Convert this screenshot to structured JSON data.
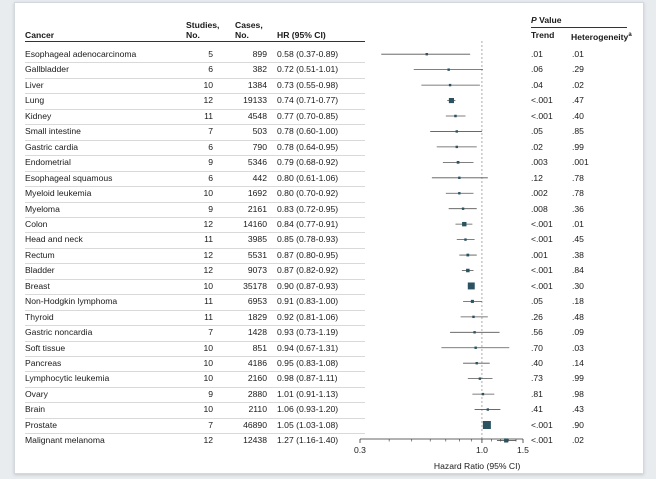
{
  "headers": {
    "cancer": "Cancer",
    "studies_line1": "Studies,",
    "studies_line2": "No.",
    "cases_line1": "Cases,",
    "cases_line2": "No.",
    "hr": "HR (95% CI)",
    "pvalue_italic": "P",
    "pvalue_rest": " Value",
    "trend": "Trend",
    "heterogeneity": "Heterogeneity",
    "heterogeneity_sup": "a"
  },
  "chart_data": {
    "type": "forest",
    "xlabel": "Hazard Ratio (95% CI)",
    "xscale": "log",
    "xlim": [
      0.3,
      1.5
    ],
    "xticks": [
      "0.3",
      "1.0",
      "1.5"
    ],
    "xtick_values": [
      0.3,
      1.0,
      1.5
    ],
    "reference_line": 1.0,
    "rows": [
      {
        "cancer": "Esophageal adenocarcinoma",
        "studies": "5",
        "cases": "899",
        "hr_text": "0.58 (0.37-0.89)",
        "hr": 0.58,
        "lo": 0.37,
        "hi": 0.89,
        "trend": ".01",
        "het": ".01"
      },
      {
        "cancer": "Gallbladder",
        "studies": "6",
        "cases": "382",
        "hr_text": "0.72 (0.51-1.01)",
        "hr": 0.72,
        "lo": 0.51,
        "hi": 1.01,
        "trend": ".06",
        "het": ".29"
      },
      {
        "cancer": "Liver",
        "studies": "10",
        "cases": "1384",
        "hr_text": "0.73 (0.55-0.98)",
        "hr": 0.73,
        "lo": 0.55,
        "hi": 0.98,
        "trend": ".04",
        "het": ".02"
      },
      {
        "cancer": "Lung",
        "studies": "12",
        "cases": "19133",
        "hr_text": "0.74 (0.71-0.77)",
        "hr": 0.74,
        "lo": 0.71,
        "hi": 0.77,
        "trend": "<.001",
        "het": ".47"
      },
      {
        "cancer": "Kidney",
        "studies": "11",
        "cases": "4548",
        "hr_text": "0.77 (0.70-0.85)",
        "hr": 0.77,
        "lo": 0.7,
        "hi": 0.85,
        "trend": "<.001",
        "het": ".40"
      },
      {
        "cancer": "Small intestine",
        "studies": "7",
        "cases": "503",
        "hr_text": "0.78 (0.60-1.00)",
        "hr": 0.78,
        "lo": 0.6,
        "hi": 1.0,
        "trend": ".05",
        "het": ".85"
      },
      {
        "cancer": "Gastric cardia",
        "studies": "6",
        "cases": "790",
        "hr_text": "0.78 (0.64-0.95)",
        "hr": 0.78,
        "lo": 0.64,
        "hi": 0.95,
        "trend": ".02",
        "het": ".99"
      },
      {
        "cancer": "Endometrial",
        "studies": "9",
        "cases": "5346",
        "hr_text": "0.79 (0.68-0.92)",
        "hr": 0.79,
        "lo": 0.68,
        "hi": 0.92,
        "trend": ".003",
        "het": ".001"
      },
      {
        "cancer": "Esophageal squamous",
        "studies": "6",
        "cases": "442",
        "hr_text": "0.80 (0.61-1.06)",
        "hr": 0.8,
        "lo": 0.61,
        "hi": 1.06,
        "trend": ".12",
        "het": ".78"
      },
      {
        "cancer": "Myeloid leukemia",
        "studies": "10",
        "cases": "1692",
        "hr_text": "0.80 (0.70-0.92)",
        "hr": 0.8,
        "lo": 0.7,
        "hi": 0.92,
        "trend": ".002",
        "het": ".78"
      },
      {
        "cancer": "Myeloma",
        "studies": "9",
        "cases": "2161",
        "hr_text": "0.83 (0.72-0.95)",
        "hr": 0.83,
        "lo": 0.72,
        "hi": 0.95,
        "trend": ".008",
        "het": ".36"
      },
      {
        "cancer": "Colon",
        "studies": "12",
        "cases": "14160",
        "hr_text": "0.84 (0.77-0.91)",
        "hr": 0.84,
        "lo": 0.77,
        "hi": 0.91,
        "trend": "<.001",
        "het": ".01"
      },
      {
        "cancer": "Head and neck",
        "studies": "11",
        "cases": "3985",
        "hr_text": "0.85 (0.78-0.93)",
        "hr": 0.85,
        "lo": 0.78,
        "hi": 0.93,
        "trend": "<.001",
        "het": ".45"
      },
      {
        "cancer": "Rectum",
        "studies": "12",
        "cases": "5531",
        "hr_text": "0.87 (0.80-0.95)",
        "hr": 0.87,
        "lo": 0.8,
        "hi": 0.95,
        "trend": ".001",
        "het": ".38"
      },
      {
        "cancer": "Bladder",
        "studies": "12",
        "cases": "9073",
        "hr_text": "0.87 (0.82-0.92)",
        "hr": 0.87,
        "lo": 0.82,
        "hi": 0.92,
        "trend": "<.001",
        "het": ".84"
      },
      {
        "cancer": "Breast",
        "studies": "10",
        "cases": "35178",
        "hr_text": "0.90 (0.87-0.93)",
        "hr": 0.9,
        "lo": 0.87,
        "hi": 0.93,
        "trend": "<.001",
        "het": ".30"
      },
      {
        "cancer": "Non-Hodgkin lymphoma",
        "studies": "11",
        "cases": "6953",
        "hr_text": "0.91 (0.83-1.00)",
        "hr": 0.91,
        "lo": 0.83,
        "hi": 1.0,
        "trend": ".05",
        "het": ".18"
      },
      {
        "cancer": "Thyroid",
        "studies": "11",
        "cases": "1829",
        "hr_text": "0.92 (0.81-1.06)",
        "hr": 0.92,
        "lo": 0.81,
        "hi": 1.06,
        "trend": ".26",
        "het": ".48"
      },
      {
        "cancer": "Gastric noncardia",
        "studies": "7",
        "cases": "1428",
        "hr_text": "0.93 (0.73-1.19)",
        "hr": 0.93,
        "lo": 0.73,
        "hi": 1.19,
        "trend": ".56",
        "het": ".09"
      },
      {
        "cancer": "Soft tissue",
        "studies": "10",
        "cases": "851",
        "hr_text": "0.94 (0.67-1.31)",
        "hr": 0.94,
        "lo": 0.67,
        "hi": 1.31,
        "trend": ".70",
        "het": ".03"
      },
      {
        "cancer": "Pancreas",
        "studies": "10",
        "cases": "4186",
        "hr_text": "0.95 (0.83-1.08)",
        "hr": 0.95,
        "lo": 0.83,
        "hi": 1.08,
        "trend": ".40",
        "het": ".14"
      },
      {
        "cancer": "Lymphocytic leukemia",
        "studies": "10",
        "cases": "2160",
        "hr_text": "0.98 (0.87-1.11)",
        "hr": 0.98,
        "lo": 0.87,
        "hi": 1.11,
        "trend": ".73",
        "het": ".99"
      },
      {
        "cancer": "Ovary",
        "studies": "9",
        "cases": "2880",
        "hr_text": "1.01 (0.91-1.13)",
        "hr": 1.01,
        "lo": 0.91,
        "hi": 1.13,
        "trend": ".81",
        "het": ".98"
      },
      {
        "cancer": "Brain",
        "studies": "10",
        "cases": "2110",
        "hr_text": "1.06 (0.93-1.20)",
        "hr": 1.06,
        "lo": 0.93,
        "hi": 1.2,
        "trend": ".41",
        "het": ".43"
      },
      {
        "cancer": "Prostate",
        "studies": "7",
        "cases": "46890",
        "hr_text": "1.05 (1.03-1.08)",
        "hr": 1.05,
        "lo": 1.03,
        "hi": 1.08,
        "trend": "<.001",
        "het": ".90"
      },
      {
        "cancer": "Malignant melanoma",
        "studies": "12",
        "cases": "12438",
        "hr_text": "1.27 (1.16-1.40)",
        "hr": 1.27,
        "lo": 1.16,
        "hi": 1.4,
        "trend": "<.001",
        "het": ".02"
      }
    ]
  },
  "colors": {
    "marker": "#2b5261",
    "ci_line": "#555555",
    "ref_line": "#999999"
  }
}
